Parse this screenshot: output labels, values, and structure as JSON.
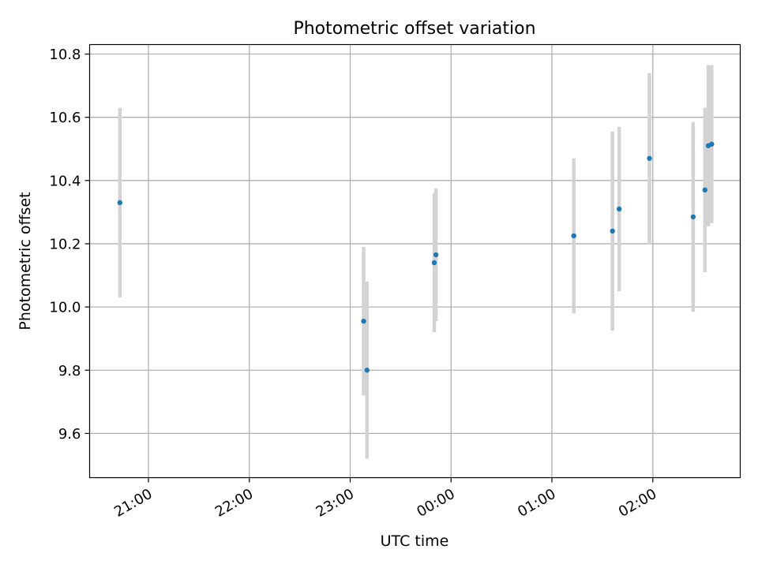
{
  "chart_data": {
    "type": "scatter",
    "title": "Photometric offset variation",
    "xlabel": "UTC time",
    "ylabel": "Photometric offset",
    "x_axis_kind": "time",
    "xlim": [
      "20:25",
      "02:52"
    ],
    "ylim": [
      9.46,
      10.83
    ],
    "x_ticks": [
      "21:00",
      "22:00",
      "23:00",
      "00:00",
      "01:00",
      "02:00"
    ],
    "y_ticks": [
      9.6,
      9.8,
      10.0,
      10.2,
      10.4,
      10.6,
      10.8
    ],
    "y_tick_labels": [
      "9.6",
      "9.8",
      "10.0",
      "10.2",
      "10.4",
      "10.6",
      "10.8"
    ],
    "grid": true,
    "legend": "none",
    "marker_color": "#1f77b4",
    "errorbar_color": "#d3d3d3",
    "points": [
      {
        "time": "20:43",
        "y": 10.33,
        "yerr": 0.3
      },
      {
        "time": "23:08",
        "y": 9.955,
        "yerr": 0.235
      },
      {
        "time": "23:10",
        "y": 9.8,
        "yerr": 0.28
      },
      {
        "time": "23:50",
        "y": 10.14,
        "yerr": 0.22
      },
      {
        "time": "23:51",
        "y": 10.165,
        "yerr": 0.21
      },
      {
        "time": "01:13",
        "y": 10.225,
        "yerr": 0.245
      },
      {
        "time": "01:36",
        "y": 10.24,
        "yerr": 0.315
      },
      {
        "time": "01:40",
        "y": 10.31,
        "yerr": 0.26
      },
      {
        "time": "01:58",
        "y": 10.47,
        "yerr": 0.27
      },
      {
        "time": "02:24",
        "y": 10.285,
        "yerr": 0.3
      },
      {
        "time": "02:31",
        "y": 10.37,
        "yerr": 0.26
      },
      {
        "time": "02:33",
        "y": 10.51,
        "yerr": 0.255
      },
      {
        "time": "02:35",
        "y": 10.515,
        "yerr": 0.25
      }
    ]
  }
}
